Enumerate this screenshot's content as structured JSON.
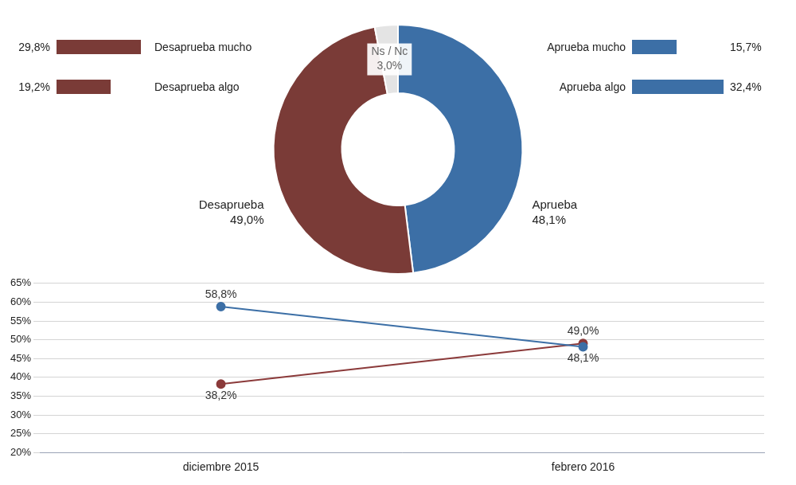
{
  "chart_data": [
    {
      "type": "bar",
      "orientation": "horizontal",
      "categories": [
        "Desaprueba mucho",
        "Desaprueba algo",
        "Aprueba mucho",
        "Aprueba algo"
      ],
      "values": [
        29.8,
        19.2,
        15.7,
        32.4
      ],
      "value_labels": [
        "29,8%",
        "19,2%",
        "15,7%",
        "32,4%"
      ],
      "colors": [
        "#7a3b37",
        "#7a3b37",
        "#3c6fa6",
        "#3c6fa6"
      ],
      "data_labels": true
    },
    {
      "type": "doughnut",
      "categories": [
        "Aprueba",
        "Desaprueba",
        "Ns / Nc"
      ],
      "values": [
        48.1,
        49.0,
        3.0
      ],
      "value_labels": [
        "48,1%",
        "49,0%",
        "3,0%"
      ],
      "colors": [
        "#3c6fa6",
        "#7a3b37",
        "#e4e4e4"
      ],
      "data_labels": true
    },
    {
      "type": "line",
      "categories": [
        "diciembre 2015",
        "febrero 2016"
      ],
      "series": [
        {
          "color": "#3c6fa6",
          "values": [
            58.8,
            48.1
          ],
          "value_labels": [
            "58,8%",
            "48,1%"
          ]
        },
        {
          "color": "#8b3a3a",
          "values": [
            38.2,
            49.0
          ],
          "value_labels": [
            "38,2%",
            "49,0%"
          ]
        }
      ],
      "ylim": [
        20,
        65
      ],
      "yticks": [
        {
          "value": 20,
          "label": "20%"
        },
        {
          "value": 25,
          "label": "25%"
        },
        {
          "value": 30,
          "label": "30%"
        },
        {
          "value": 35,
          "label": "35%"
        },
        {
          "value": 40,
          "label": "40%"
        },
        {
          "value": 45,
          "label": "45%"
        },
        {
          "value": 50,
          "label": "50%"
        },
        {
          "value": 55,
          "label": "55%"
        },
        {
          "value": 60,
          "label": "60%"
        },
        {
          "value": 65,
          "label": "65%"
        }
      ],
      "grid": true,
      "data_labels": true,
      "marker": "circle"
    }
  ]
}
